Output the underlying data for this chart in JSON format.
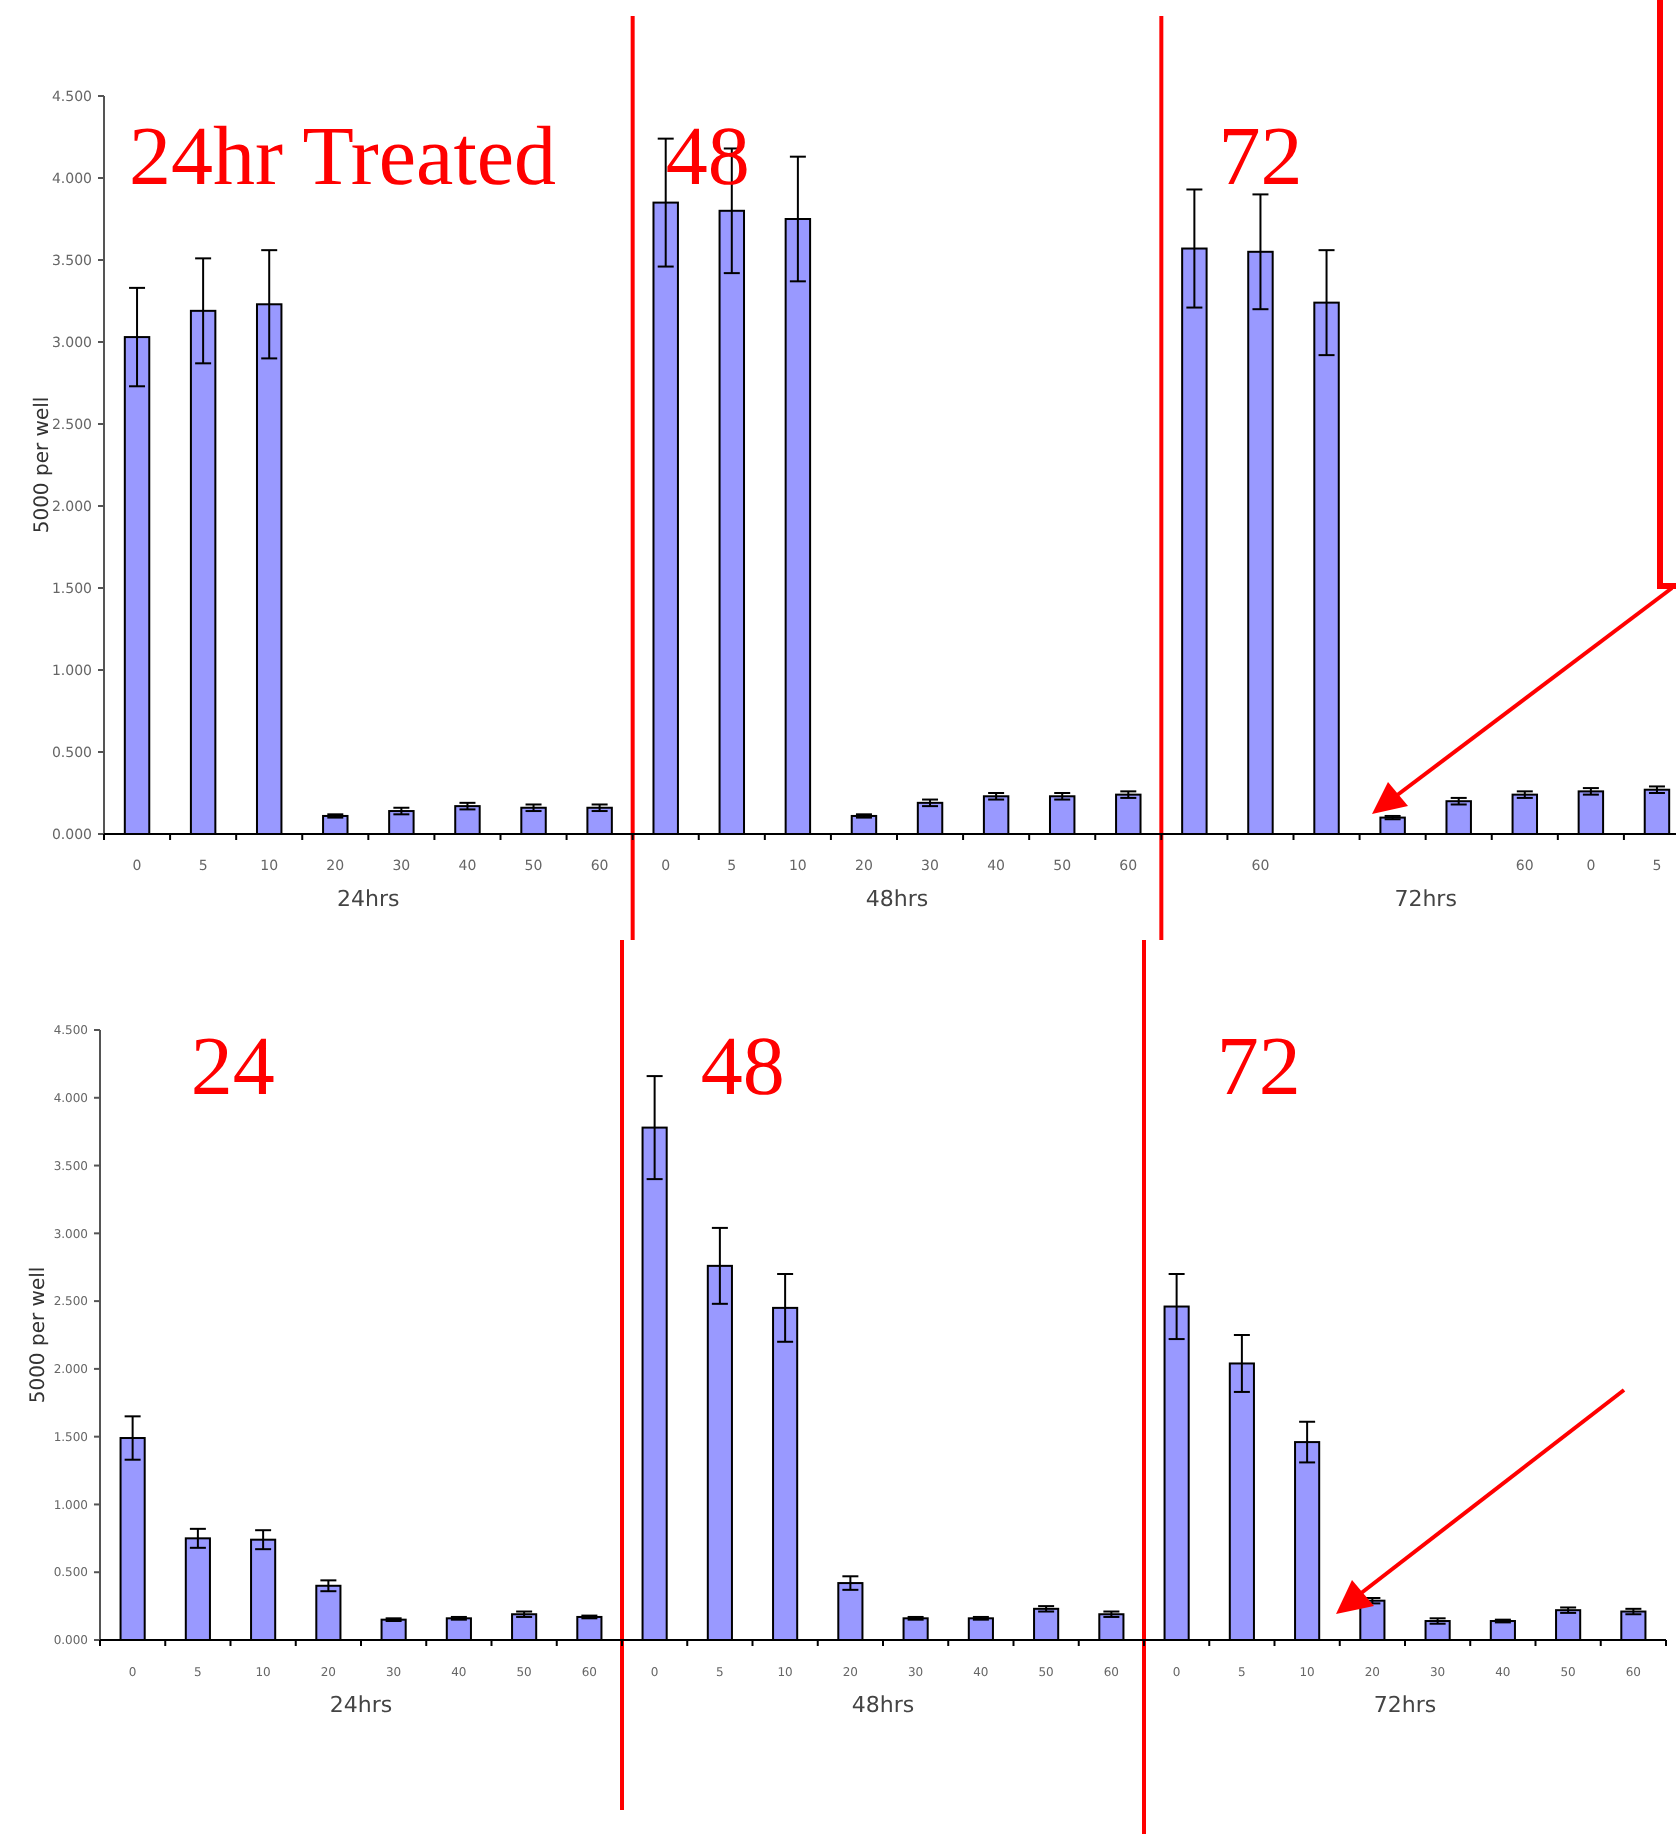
{
  "chart_data": [
    {
      "type": "bar",
      "ylabel": "5000 per well",
      "color": "#9999ff",
      "ylim": [
        0,
        4.5
      ],
      "yticks": [
        {
          "value": 0,
          "label": "0.000"
        },
        {
          "value": 0.5,
          "label": "0.500"
        },
        {
          "value": 1,
          "label": "1.000"
        },
        {
          "value": 1.5,
          "label": "1.500"
        },
        {
          "value": 2,
          "label": "2.000"
        },
        {
          "value": 2.5,
          "label": "2.500"
        },
        {
          "value": 3,
          "label": "3.000"
        },
        {
          "value": 3.5,
          "label": "3.500"
        },
        {
          "value": 4,
          "label": "4.000"
        },
        {
          "value": 4.5,
          "label": "4.500"
        }
      ],
      "categories": [
        "0",
        "5",
        "10",
        "20",
        "30",
        "40",
        "50",
        "60",
        "0",
        "5",
        "10",
        "20",
        "30",
        "40",
        "50",
        "60",
        null,
        "60",
        null,
        null,
        null,
        "60",
        "0",
        "5"
      ],
      "values": [
        3.03,
        3.19,
        3.23,
        0.11,
        0.14,
        0.17,
        0.16,
        0.16,
        3.85,
        3.8,
        3.75,
        0.11,
        0.19,
        0.23,
        0.23,
        0.24,
        3.57,
        3.55,
        3.24,
        0.1,
        0.2,
        0.24,
        0.26,
        0.27
      ],
      "errors": [
        0.3,
        0.32,
        0.33,
        0.01,
        0.02,
        0.02,
        0.02,
        0.02,
        0.39,
        0.38,
        0.38,
        0.01,
        0.02,
        0.02,
        0.02,
        0.02,
        0.36,
        0.35,
        0.32,
        0.01,
        0.02,
        0.02,
        0.02,
        0.02
      ],
      "annotations": [
        "24hr Treated",
        "48",
        "72",
        "24hrs",
        "48hrs",
        "72hrs"
      ]
    },
    {
      "type": "bar",
      "ylabel": "5000 per well",
      "color": "#9999ff",
      "ylim": [
        0,
        4.5
      ],
      "yticks": [
        {
          "value": 0,
          "label": "0.000"
        },
        {
          "value": 0.5,
          "label": "0.500"
        },
        {
          "value": 1,
          "label": "1.000"
        },
        {
          "value": 1.5,
          "label": "1.500"
        },
        {
          "value": 2,
          "label": "2.000"
        },
        {
          "value": 2.5,
          "label": "2.500"
        },
        {
          "value": 3,
          "label": "3.000"
        },
        {
          "value": 3.5,
          "label": "3.500"
        },
        {
          "value": 4,
          "label": "4.000"
        },
        {
          "value": 4.5,
          "label": "4.500"
        }
      ],
      "categories": [
        "0",
        "5",
        "10",
        "20",
        "30",
        "40",
        "50",
        "60",
        "0",
        "5",
        "10",
        "20",
        "30",
        "40",
        "50",
        "60",
        "0",
        "5",
        "10",
        "20",
        "30",
        "40",
        "50",
        "60"
      ],
      "values": [
        1.49,
        0.75,
        0.74,
        0.4,
        0.15,
        0.16,
        0.19,
        0.17,
        3.78,
        2.76,
        2.45,
        0.42,
        0.16,
        0.16,
        0.23,
        0.19,
        2.46,
        2.04,
        1.46,
        0.29,
        0.14,
        0.14,
        0.22,
        0.21
      ],
      "errors": [
        0.16,
        0.07,
        0.07,
        0.04,
        0.01,
        0.01,
        0.02,
        0.01,
        0.38,
        0.28,
        0.25,
        0.05,
        0.01,
        0.01,
        0.02,
        0.02,
        0.24,
        0.21,
        0.15,
        0.02,
        0.02,
        0.01,
        0.02,
        0.02
      ],
      "annotations": [
        "24",
        "48",
        "72",
        "24hrs",
        "48hrs",
        "72hrs"
      ]
    }
  ]
}
